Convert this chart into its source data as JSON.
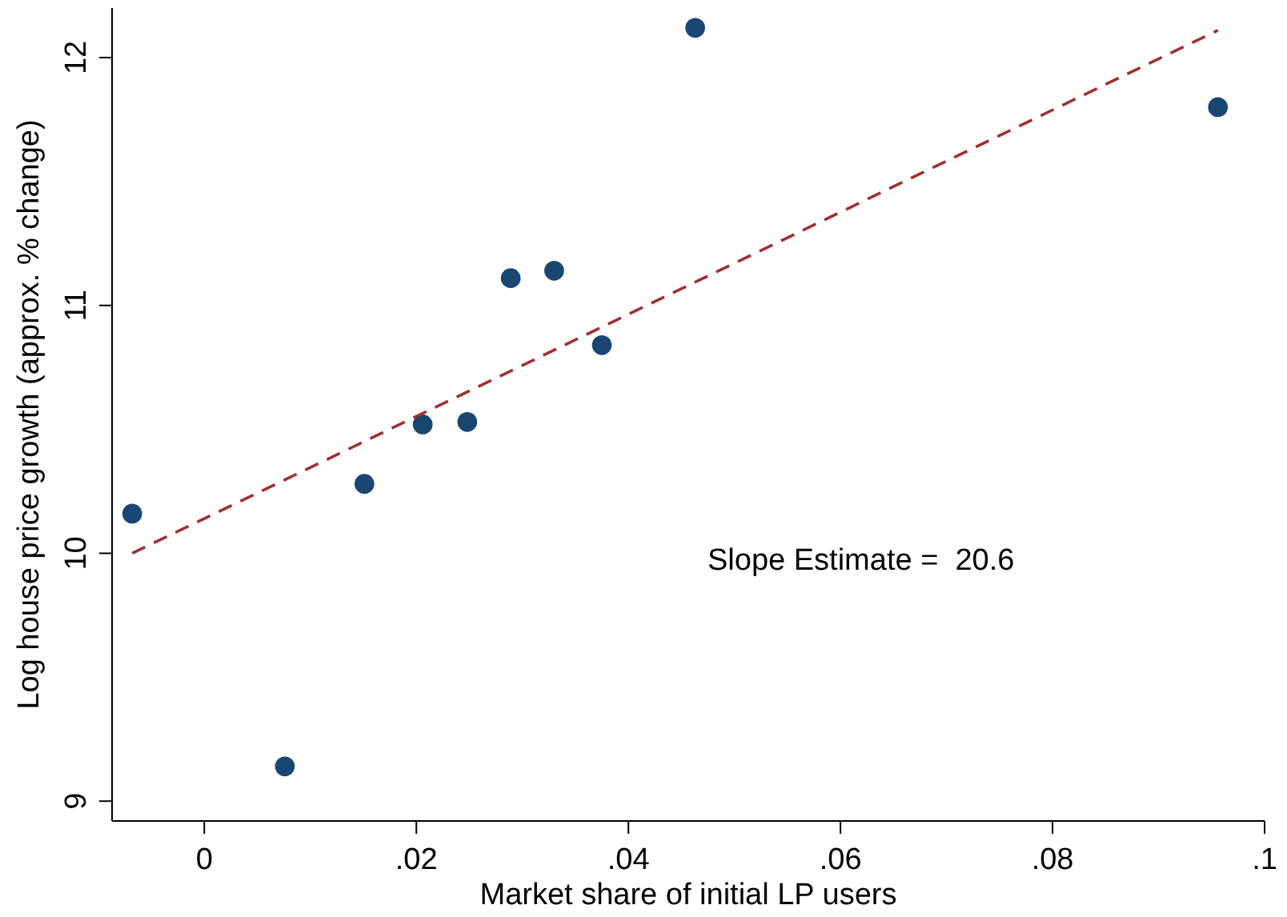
{
  "chart_data": {
    "type": "scatter",
    "xlabel": "Market share of initial LP users",
    "ylabel": "Log house price growth (approx. % change)",
    "xlim": [
      -0.0087,
      0.1
    ],
    "ylim": [
      8.92,
      12.2
    ],
    "xticks": [
      0,
      {
        "value": 0.02,
        "label": ".02"
      },
      {
        "value": 0.04,
        "label": ".04"
      },
      {
        "value": 0.06,
        "label": ".06"
      },
      {
        "value": 0.08,
        "label": ".08"
      },
      {
        "value": 0.1,
        "label": ".1"
      }
    ],
    "yticks": [
      9,
      10,
      11,
      12
    ],
    "grid": false,
    "series": [
      {
        "color": "#1a4672",
        "marker": "circle",
        "x": [
          -0.0068,
          0.0076,
          0.0151,
          0.0206,
          0.0248,
          0.0289,
          0.033,
          0.0375,
          0.0463,
          0.0956
        ],
        "values": [
          10.16,
          9.14,
          10.28,
          10.52,
          10.53,
          11.11,
          11.14,
          10.84,
          12.12,
          11.8
        ]
      },
      {
        "type": "line",
        "color": "#a03030",
        "line_style": "dashed",
        "marker": "none",
        "x": [
          -0.0068,
          0.0956
        ],
        "values": [
          10.0,
          12.11
        ]
      }
    ],
    "annotations": [
      "Slope Estimate =  20.6"
    ]
  }
}
